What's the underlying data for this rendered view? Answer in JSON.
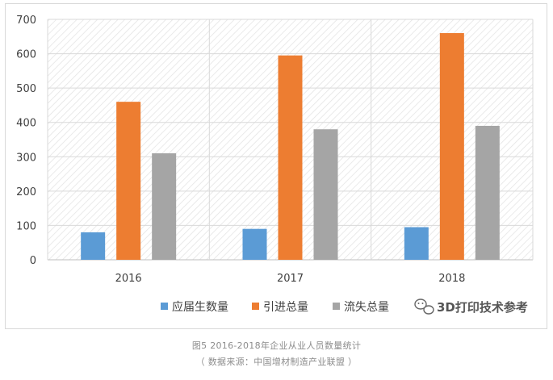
{
  "chart_data": {
    "type": "bar",
    "categories": [
      "2016",
      "2017",
      "2018"
    ],
    "series": [
      {
        "name": "应届生数量",
        "values": [
          80,
          90,
          95
        ],
        "color": "#5B9BD5"
      },
      {
        "name": "引进总量",
        "values": [
          460,
          595,
          660
        ],
        "color": "#ED7D31"
      },
      {
        "name": "流失总量",
        "values": [
          310,
          380,
          390
        ],
        "color": "#A5A5A5"
      }
    ],
    "ylim": [
      0,
      700
    ],
    "yticks": [
      "0",
      "100",
      "200",
      "300",
      "400",
      "500",
      "600",
      "700"
    ],
    "grid": true,
    "legend_position": "bottom",
    "plot_background": "diagonal-hatch"
  },
  "watermark": {
    "text": "3D打印技术参考",
    "icon": "wechat-icon"
  },
  "caption": {
    "line1": "图5  2016-2018年企业从业人员数量统计",
    "line2": "（ 数据来源：中国增材制造产业联盟 ）"
  }
}
